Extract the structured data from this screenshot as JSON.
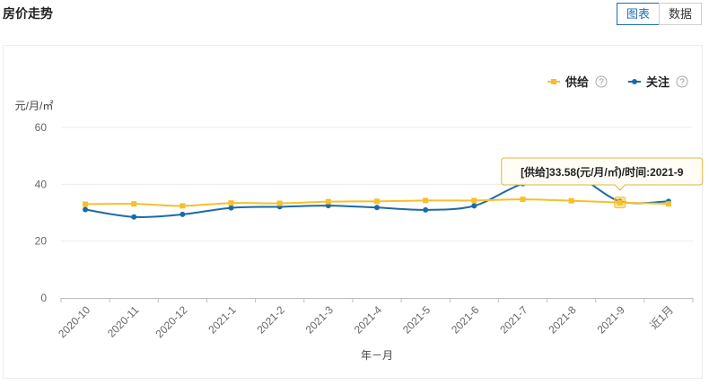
{
  "header": {
    "title": "房价走势",
    "tabs": [
      {
        "label": "图表",
        "active": true
      },
      {
        "label": "数据",
        "active": false
      }
    ]
  },
  "legend_help_symbol": "?",
  "colors": {
    "supply": "#f5c02a",
    "attention": "#1a6aa8",
    "grid": "#ececec",
    "axis": "#bdbdbd",
    "tooltip_border": "#e0b53a"
  },
  "chart_data": {
    "type": "line",
    "title": "",
    "unit_label": "元/月/㎡",
    "xlabel": "年－月",
    "categories": [
      "2020-10",
      "2020-11",
      "2020-12",
      "2021-1",
      "2021-2",
      "2021-3",
      "2021-4",
      "2021-5",
      "2021-6",
      "2021-7",
      "2021-8",
      "2021-9",
      "近1月"
    ],
    "yticks": [
      0,
      20,
      40,
      60
    ],
    "ylim": [
      0,
      60
    ],
    "legend_position": "top-right",
    "series": [
      {
        "name": "供给",
        "marker": "square",
        "values": [
          33.0,
          33.1,
          32.4,
          33.4,
          33.3,
          33.9,
          34.0,
          34.3,
          34.3,
          34.7,
          34.2,
          33.58,
          33.1
        ]
      },
      {
        "name": "关注",
        "marker": "circle",
        "values": [
          31.1,
          28.5,
          29.4,
          31.7,
          32.1,
          32.5,
          31.8,
          31.0,
          32.4,
          40.2,
          43.5,
          34.0,
          34.0
        ]
      }
    ],
    "tooltip": {
      "text": "[供给]33.58(元/月/㎡)/时间:2021-9",
      "series_index": 0,
      "category_index": 11
    }
  }
}
